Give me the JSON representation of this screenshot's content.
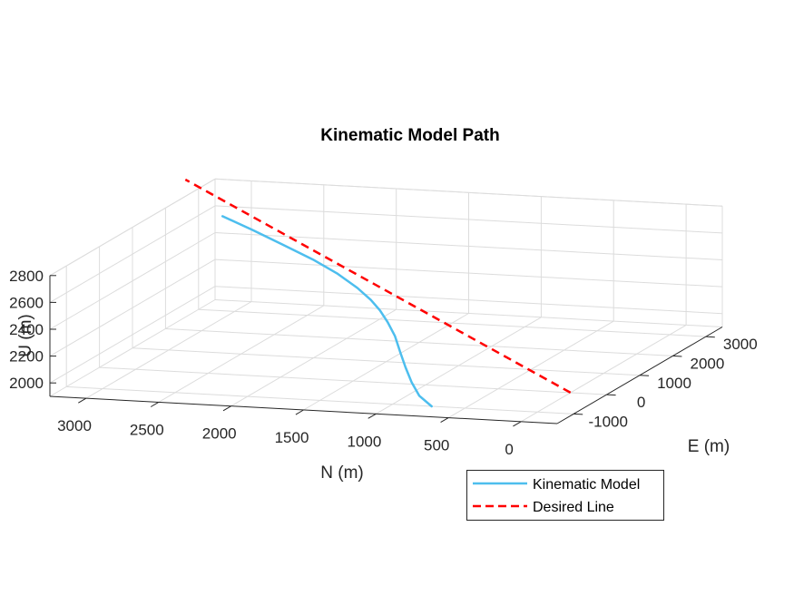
{
  "chart_data": {
    "type": "line",
    "title": "Kinematic Model Path",
    "xlabel": "N (m)",
    "ylabel": "E (m)",
    "zlabel": "U (m)",
    "xlim": [
      -250,
      3250
    ],
    "ylim": [
      -1500,
      3500
    ],
    "zlim": [
      1900,
      2800
    ],
    "x_ticks": [
      0,
      500,
      1000,
      1500,
      2000,
      2500,
      3000
    ],
    "y_ticks": [
      -1000,
      0,
      1000,
      2000,
      3000
    ],
    "z_ticks": [
      2000,
      2200,
      2400,
      2600,
      2800
    ],
    "x_tick_labels": [
      "0",
      "500",
      "1000",
      "1500",
      "2000",
      "2500",
      "3000"
    ],
    "y_tick_labels": [
      "-1000",
      "0",
      "1000",
      "2000",
      "3000"
    ],
    "z_tick_labels": [
      "2000",
      "2200",
      "2400",
      "2600",
      "2800"
    ],
    "grid": true,
    "legend_position": "bottom-right",
    "series": [
      {
        "name": "Kinematic Model",
        "color": "#4DBEEE",
        "style": "solid",
        "x": [
          730,
          850,
          960,
          1070,
          1175,
          1280,
          1380,
          1470,
          1560,
          1680,
          1850,
          2050,
          2300,
          2550,
          2800
        ],
        "y": [
          -1000,
          -850,
          -600,
          -300,
          0,
          300,
          520,
          680,
          800,
          920,
          1050,
          1200,
          1380,
          1560,
          1750
        ],
        "z": [
          1900,
          1950,
          2010,
          2070,
          2135,
          2205,
          2270,
          2330,
          2385,
          2450,
          2530,
          2600,
          2670,
          2740,
          2800
        ]
      },
      {
        "name": "Desired Line",
        "color": "#FF0000",
        "style": "dashed",
        "x": [
          0,
          3250
        ],
        "y": [
          0,
          2600
        ],
        "z": [
          1900,
          2925
        ]
      }
    ]
  }
}
